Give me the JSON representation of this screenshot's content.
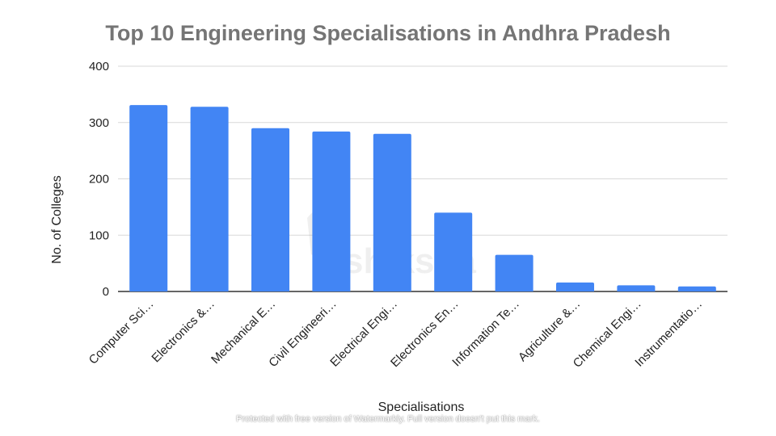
{
  "chart_data": {
    "type": "bar",
    "title": "Top 10 Engineering Specialisations in Andhra Pradesh",
    "xlabel": "Specialisations",
    "ylabel": "No. of Colleges",
    "ylim": [
      0,
      400
    ],
    "yticks": [
      0,
      100,
      200,
      300,
      400
    ],
    "grid": true,
    "categories": [
      "Computer Sci…",
      "Electronics &…",
      "Mechanical E…",
      "Civil Engineeri…",
      "Electrical Engi…",
      "Electronics En…",
      "Information Te…",
      "Agriculture &…",
      "Chemical Engi…",
      "Instrumentatio…"
    ],
    "values": [
      331,
      328,
      290,
      284,
      280,
      140,
      65,
      16,
      11,
      9
    ],
    "colors": {
      "bar": "#4285f4",
      "grid": "#d9d9d9",
      "axis": "#333333",
      "title": "#757575"
    }
  },
  "watermark": {
    "logo_text": "shiksha",
    "footer": "Protected with free version of Watermarkly. Full version doesn't put this mark."
  }
}
